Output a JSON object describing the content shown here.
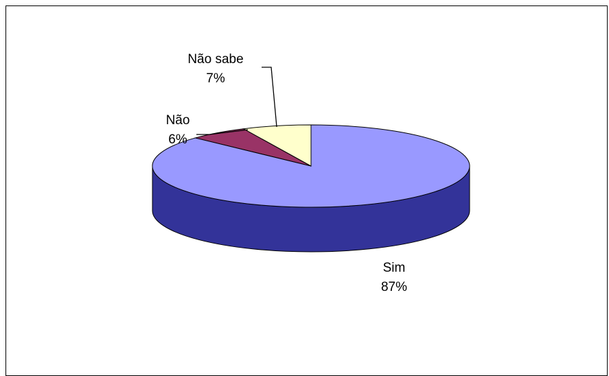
{
  "chart_data": {
    "type": "pie",
    "title": "",
    "slices": [
      {
        "name": "Sim",
        "value": 87,
        "label": "87%",
        "color": "#9999ff",
        "side_color": "#333399"
      },
      {
        "name": "Não",
        "value": 6,
        "label": "6%",
        "color": "#993366",
        "side_color": "#4d1a33"
      },
      {
        "name": "Não sabe",
        "value": 7,
        "label": "7%",
        "color": "#ffffcc",
        "side_color": "#808066"
      }
    ],
    "style": "3d-pie",
    "legend": "none"
  }
}
